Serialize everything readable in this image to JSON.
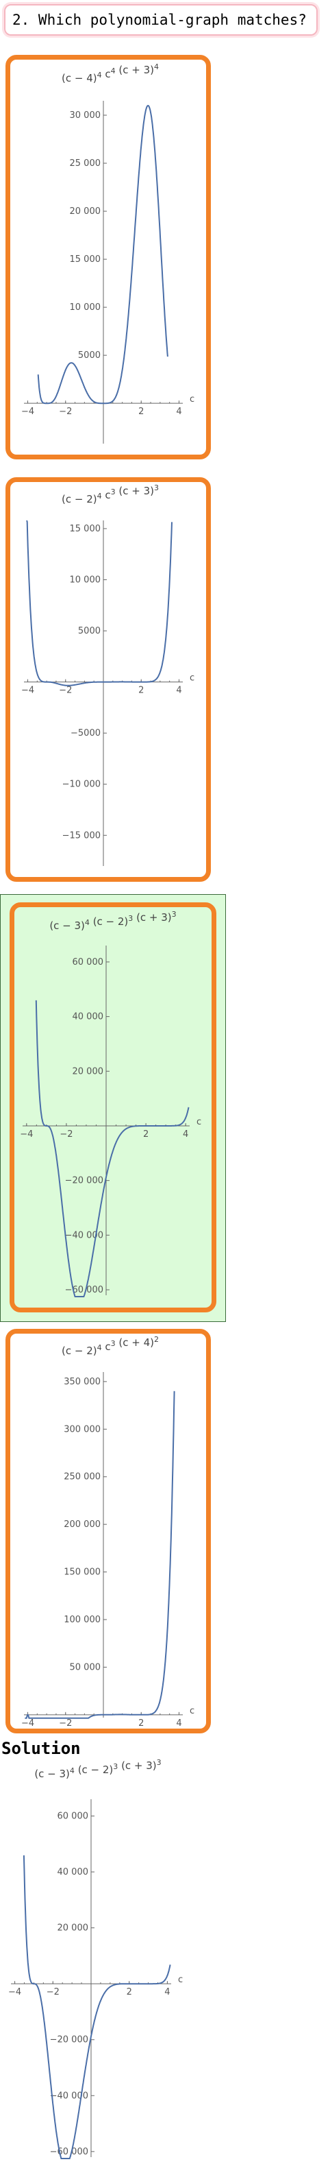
{
  "question": {
    "text": "2. Which polynomial-graph matches?"
  },
  "solution": {
    "heading": "Solution"
  },
  "colors": {
    "option_border": "#f28227",
    "correct_fill": "#dcfbd9",
    "curve": "#4a6ea8",
    "question_border": "#f5b6c0"
  },
  "plots": [
    {
      "id": "option-1",
      "title_parts": [
        [
          "(c − 4)",
          "4"
        ],
        [
          " c",
          "4"
        ],
        [
          " (c + 3)",
          "4"
        ]
      ],
      "x_label": "c",
      "x_ticks": [
        -4,
        -2,
        2,
        4
      ],
      "x_tick_labels": [
        "−4",
        "−2",
        "2",
        "4"
      ],
      "y_ticks": [
        5000,
        10000,
        15000,
        20000,
        25000,
        30000
      ],
      "y_tick_labels": [
        "5000",
        "10 000",
        "15 000",
        "20 000",
        "25 000",
        "30 000"
      ],
      "x_range": [
        -4.2,
        4.2
      ],
      "y_range": [
        -4200,
        31500
      ],
      "curve_domain": [
        -3.45,
        3.4
      ],
      "scale": 1,
      "selected": false
    },
    {
      "id": "option-2",
      "title_parts": [
        [
          "(c − 2)",
          "4"
        ],
        [
          " c",
          "3"
        ],
        [
          " (c + 3)",
          "3"
        ]
      ],
      "x_label": "c",
      "x_ticks": [
        -4,
        -2,
        2,
        4
      ],
      "x_tick_labels": [
        "−4",
        "−2",
        "2",
        "4"
      ],
      "y_ticks": [
        -15000,
        -10000,
        -5000,
        5000,
        10000,
        15000
      ],
      "y_tick_labels": [
        "−15 000",
        "−10 000",
        "−5000",
        "5000",
        "10 000",
        "15 000"
      ],
      "x_range": [
        -4.2,
        4.2
      ],
      "y_range": [
        -18000,
        15800
      ],
      "curve_domain": [
        -4.05,
        3.62
      ],
      "scale": 1,
      "selected": false
    },
    {
      "id": "option-3",
      "title_parts": [
        [
          "(c − 3)",
          "4"
        ],
        [
          " (c − 2)",
          "3"
        ],
        [
          " (c + 3)",
          "3"
        ]
      ],
      "x_label": "c",
      "x_ticks": [
        -4,
        -2,
        2,
        4
      ],
      "x_tick_labels": [
        "−4",
        "−2",
        "2",
        "4"
      ],
      "y_ticks": [
        -60000,
        -40000,
        -20000,
        20000,
        40000,
        60000
      ],
      "y_tick_labels": [
        "−60 000",
        "−40 000",
        "−20 000",
        "20 000",
        "40 000",
        "60 000"
      ],
      "x_range": [
        -4.2,
        4.2
      ],
      "y_range": [
        -62000,
        66000
      ],
      "curve_domain": [
        -3.52,
        4.15
      ],
      "scale": 1,
      "selected": true
    },
    {
      "id": "option-4",
      "title_parts": [
        [
          "(c − 2)",
          "4"
        ],
        [
          " c",
          "3"
        ],
        [
          " (c + 4)",
          "2"
        ]
      ],
      "x_label": "c",
      "x_ticks": [
        -4,
        -2,
        2,
        4
      ],
      "x_tick_labels": [
        "−4",
        "−2",
        "2",
        "4"
      ],
      "y_ticks": [
        50000,
        100000,
        150000,
        200000,
        250000,
        300000,
        350000
      ],
      "y_tick_labels": [
        "50 000",
        "100 000",
        "150 000",
        "200 000",
        "250 000",
        "300 000",
        "350 000"
      ],
      "x_range": [
        -4.2,
        4.2
      ],
      "y_range": [
        -3000,
        360000
      ],
      "curve_domain": [
        -4.15,
        3.75
      ],
      "scale": 1,
      "selected": false
    },
    {
      "id": "solution",
      "title_parts": [
        [
          "(c − 3)",
          "4"
        ],
        [
          " (c − 2)",
          "3"
        ],
        [
          " (c + 3)",
          "3"
        ]
      ],
      "x_label": "c",
      "x_ticks": [
        -4,
        -2,
        2,
        4
      ],
      "x_tick_labels": [
        "−4",
        "−2",
        "2",
        "4"
      ],
      "y_ticks": [
        -60000,
        -40000,
        -20000,
        20000,
        40000,
        60000
      ],
      "y_tick_labels": [
        "−60 000",
        "−40 000",
        "−20 000",
        "20 000",
        "40 000",
        "60 000"
      ],
      "x_range": [
        -4.2,
        4.2
      ],
      "y_range": [
        -62000,
        66000
      ],
      "curve_domain": [
        -3.52,
        4.15
      ],
      "scale": 1,
      "selected": false
    }
  ]
}
